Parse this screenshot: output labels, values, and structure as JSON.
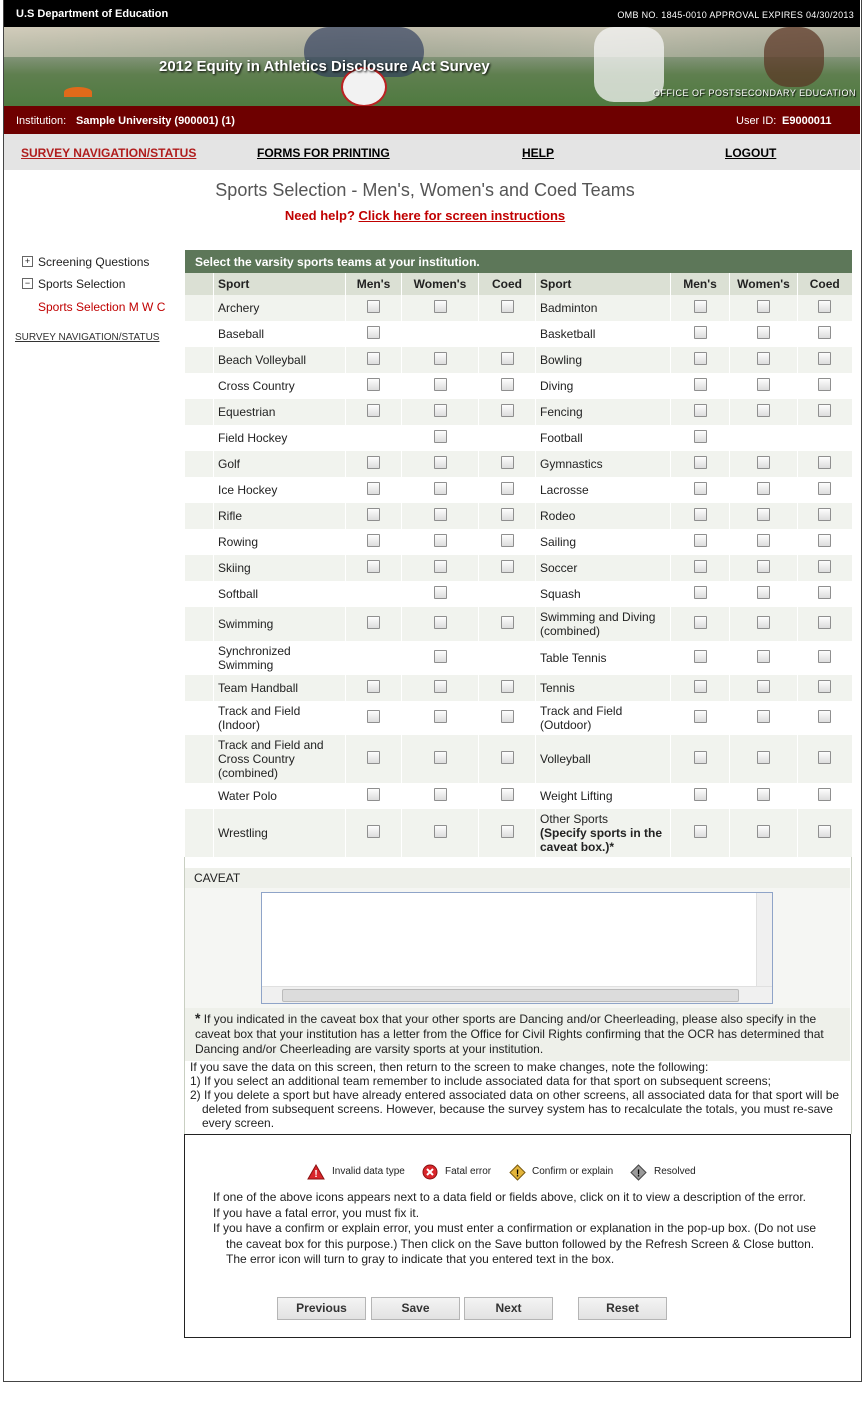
{
  "header": {
    "agency": "U.S Department of Education",
    "omb": "OMB NO. 1845-0010 APPROVAL EXPIRES 04/30/2013",
    "title": "2012 Equity in Athletics Disclosure Act Survey",
    "office": "OFFICE OF POSTSECONDARY EDUCATION"
  },
  "user_bar": {
    "institution_label": "Institution:",
    "institution": "Sample University (900001) (1)",
    "user_label": "User ID:",
    "user_id": "E9000011"
  },
  "nav": [
    "SURVEY NAVIGATION/STATUS",
    "FORMS FOR PRINTING",
    "HELP",
    "LOGOUT"
  ],
  "page": {
    "title": "Sports Selection - Men's, Women's and Coed Teams",
    "help_prefix": "Need help?",
    "help_link": "Click here for screen instructions"
  },
  "sidebar": {
    "items": [
      "Screening Questions",
      "Sports Selection"
    ],
    "sub": "Sports Selection M W C",
    "link": "SURVEY NAVIGATION/STATUS"
  },
  "table": {
    "caption": "Select the varsity sports teams at your institution.",
    "columns": [
      "Sport",
      "Men's",
      "Women's",
      "Coed"
    ],
    "rows": [
      [
        {
          "name": "Archery",
          "boxes": [
            true,
            true,
            true
          ]
        },
        {
          "name": "Badminton",
          "boxes": [
            true,
            true,
            true
          ]
        }
      ],
      [
        {
          "name": "Baseball",
          "boxes": [
            true,
            false,
            false
          ]
        },
        {
          "name": "Basketball",
          "boxes": [
            true,
            true,
            true
          ]
        }
      ],
      [
        {
          "name": "Beach Volleyball",
          "boxes": [
            true,
            true,
            true
          ]
        },
        {
          "name": "Bowling",
          "boxes": [
            true,
            true,
            true
          ]
        }
      ],
      [
        {
          "name": "Cross Country",
          "boxes": [
            true,
            true,
            true
          ]
        },
        {
          "name": "Diving",
          "boxes": [
            true,
            true,
            true
          ]
        }
      ],
      [
        {
          "name": "Equestrian",
          "boxes": [
            true,
            true,
            true
          ]
        },
        {
          "name": "Fencing",
          "boxes": [
            true,
            true,
            true
          ]
        }
      ],
      [
        {
          "name": "Field Hockey",
          "boxes": [
            false,
            true,
            false
          ]
        },
        {
          "name": "Football",
          "boxes": [
            true,
            false,
            false
          ]
        }
      ],
      [
        {
          "name": "Golf",
          "boxes": [
            true,
            true,
            true
          ]
        },
        {
          "name": "Gymnastics",
          "boxes": [
            true,
            true,
            true
          ]
        }
      ],
      [
        {
          "name": "Ice Hockey",
          "boxes": [
            true,
            true,
            true
          ]
        },
        {
          "name": "Lacrosse",
          "boxes": [
            true,
            true,
            true
          ]
        }
      ],
      [
        {
          "name": "Rifle",
          "boxes": [
            true,
            true,
            true
          ]
        },
        {
          "name": "Rodeo",
          "boxes": [
            true,
            true,
            true
          ]
        }
      ],
      [
        {
          "name": "Rowing",
          "boxes": [
            true,
            true,
            true
          ]
        },
        {
          "name": "Sailing",
          "boxes": [
            true,
            true,
            true
          ]
        }
      ],
      [
        {
          "name": "Skiing",
          "boxes": [
            true,
            true,
            true
          ]
        },
        {
          "name": "Soccer",
          "boxes": [
            true,
            true,
            true
          ]
        }
      ],
      [
        {
          "name": "Softball",
          "boxes": [
            false,
            true,
            false
          ]
        },
        {
          "name": "Squash",
          "boxes": [
            true,
            true,
            true
          ]
        }
      ],
      [
        {
          "name": "Swimming",
          "boxes": [
            true,
            true,
            true
          ]
        },
        {
          "name": "Swimming and Diving (combined)",
          "boxes": [
            true,
            true,
            true
          ]
        }
      ],
      [
        {
          "name": "Synchronized Swimming",
          "boxes": [
            false,
            true,
            false
          ]
        },
        {
          "name": "Table Tennis",
          "boxes": [
            true,
            true,
            true
          ]
        }
      ],
      [
        {
          "name": "Team Handball",
          "boxes": [
            true,
            true,
            true
          ]
        },
        {
          "name": "Tennis",
          "boxes": [
            true,
            true,
            true
          ]
        }
      ],
      [
        {
          "name": "Track and Field (Indoor)",
          "boxes": [
            true,
            true,
            true
          ]
        },
        {
          "name": "Track and Field (Outdoor)",
          "boxes": [
            true,
            true,
            true
          ]
        }
      ],
      [
        {
          "name": "Track and Field and Cross Country (combined)",
          "boxes": [
            true,
            true,
            true
          ]
        },
        {
          "name": "Volleyball",
          "boxes": [
            true,
            true,
            true
          ]
        }
      ],
      [
        {
          "name": "Water Polo",
          "boxes": [
            true,
            true,
            true
          ]
        },
        {
          "name": "Weight Lifting",
          "boxes": [
            true,
            true,
            true
          ]
        }
      ],
      [
        {
          "name": "Wrestling",
          "boxes": [
            true,
            true,
            true
          ]
        },
        {
          "name": "Other Sports",
          "note": "(Specify sports in the caveat box.)*",
          "boxes": [
            true,
            true,
            true
          ]
        }
      ]
    ]
  },
  "caveat": {
    "label": "CAVEAT"
  },
  "notes": {
    "asterisk": "*",
    "star_note": "If you indicated in the caveat box that your other sports are Dancing and/or Cheerleading, please also specify in the caveat box that your institution has a letter from the Office for Civil Rights confirming that the OCR has determined that Dancing and/or Cheerleading are varsity sports at your institution.",
    "intro": "If you save the data on this screen, then return to the screen to make changes, note the following:",
    "items": [
      "1) If you select an additional team remember to include associated data for that sport on subsequent screens;",
      "2) If you delete a sport but have already entered associated data on other screens, all associated data for that sport will be deleted from subsequent screens. However, because the survey system has to recalculate the totals, you must re-save every screen."
    ]
  },
  "legend": [
    "Invalid data type",
    "Fatal error",
    "Confirm or explain",
    "Resolved"
  ],
  "instructions": [
    "If one of the above icons appears next to a data field or fields above, click on it to view a description of the error.",
    "If you have a fatal error, you must fix it.",
    "If you have a confirm or explain error, you must enter a confirmation or explanation in the pop-up box. (Do not use the caveat box for this purpose.) Then click on the Save button followed by the Refresh Screen & Close button. The error icon will turn to gray to indicate that you entered text in the box."
  ],
  "buttons": [
    "Previous",
    "Save",
    "Next",
    "Reset"
  ]
}
